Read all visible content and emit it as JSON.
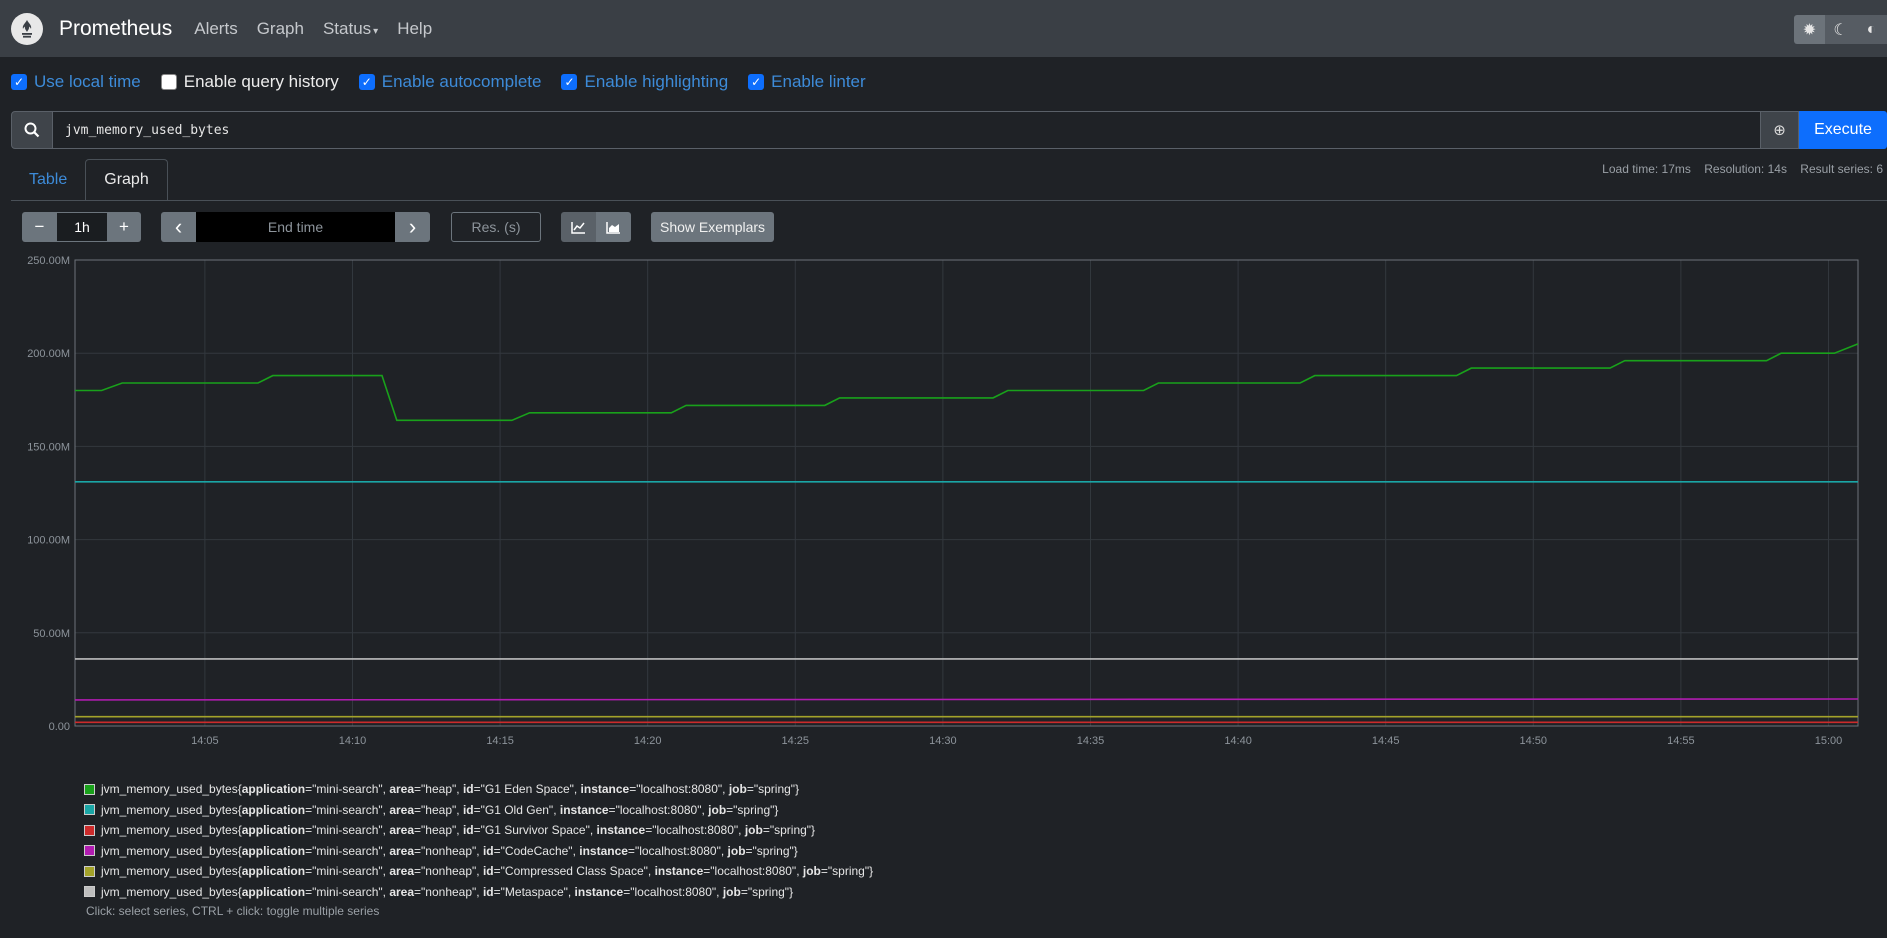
{
  "navbar": {
    "brand": "Prometheus",
    "links": [
      "Alerts",
      "Graph",
      "Status",
      "Help"
    ],
    "status_caret": "▾",
    "theme_buttons": [
      {
        "icon": "sun-icon",
        "glyph": "✹"
      },
      {
        "icon": "moon-icon",
        "glyph": "☾"
      },
      {
        "icon": "half-circle-icon",
        "glyph": "◐"
      }
    ]
  },
  "options": [
    {
      "label": "Use local time",
      "checked": true
    },
    {
      "label": "Enable query history",
      "checked": false
    },
    {
      "label": "Enable autocomplete",
      "checked": true
    },
    {
      "label": "Enable highlighting",
      "checked": true
    },
    {
      "label": "Enable linter",
      "checked": true
    }
  ],
  "query": {
    "expression": "jvm_memory_used_bytes",
    "execute_label": "Execute",
    "globe_glyph": "⊕"
  },
  "tabs": [
    "Table",
    "Graph"
  ],
  "stats": {
    "load_time": "Load time: 17ms",
    "resolution": "Resolution: 14s",
    "result_series": "Result series: 6"
  },
  "controls": {
    "minus": "−",
    "range": "1h",
    "plus": "+",
    "prev": "‹",
    "end_time_placeholder": "End time",
    "next": "›",
    "res_placeholder": "Res. (s)",
    "show_exemplars": "Show Exemplars"
  },
  "chart_data": {
    "type": "line",
    "y_ticks": [
      "0.00",
      "50.00M",
      "100.00M",
      "150.00M",
      "200.00M",
      "250.00M"
    ],
    "x_ticks": [
      "14:05",
      "14:10",
      "14:15",
      "14:20",
      "14:25",
      "14:30",
      "14:35",
      "14:40",
      "14:45",
      "14:50",
      "14:55",
      "15:00"
    ],
    "x_range_min": [
      60.6,
      121.0
    ],
    "ylim": [
      0,
      250
    ],
    "y_unit": "M",
    "grid": true,
    "series": [
      {
        "color": "#19a11b",
        "points": [
          [
            60.6,
            180
          ],
          [
            61.5,
            180
          ],
          [
            62.2,
            184
          ],
          [
            66.8,
            184
          ],
          [
            67.3,
            188
          ],
          [
            71.0,
            188
          ],
          [
            71.5,
            164
          ],
          [
            75.4,
            164
          ],
          [
            76.0,
            168
          ],
          [
            80.8,
            168
          ],
          [
            81.3,
            172
          ],
          [
            86.0,
            172
          ],
          [
            86.5,
            176
          ],
          [
            91.7,
            176
          ],
          [
            92.2,
            180
          ],
          [
            96.8,
            180
          ],
          [
            97.3,
            184
          ],
          [
            102.1,
            184
          ],
          [
            102.6,
            188
          ],
          [
            107.4,
            188
          ],
          [
            107.9,
            192
          ],
          [
            112.6,
            192
          ],
          [
            113.1,
            196
          ],
          [
            117.9,
            196
          ],
          [
            118.4,
            200
          ],
          [
            120.2,
            200
          ],
          [
            121.0,
            205
          ]
        ]
      },
      {
        "color": "#1aa6a6",
        "points": [
          [
            60.6,
            131
          ],
          [
            121.0,
            131
          ]
        ]
      },
      {
        "color": "#cc2b2b",
        "points": [
          [
            60.6,
            2
          ],
          [
            121.0,
            2
          ]
        ]
      },
      {
        "color": "#b11cb1",
        "points": [
          [
            60.6,
            14
          ],
          [
            121.0,
            14.5
          ]
        ]
      },
      {
        "color": "#a3a32a",
        "points": [
          [
            60.6,
            5
          ],
          [
            121.0,
            5
          ]
        ]
      },
      {
        "color": "#bdbdbd",
        "points": [
          [
            60.6,
            36
          ],
          [
            121.0,
            36
          ]
        ]
      }
    ]
  },
  "legend": {
    "metric": "jvm_memory_used_bytes",
    "items": [
      {
        "color": "#19a11b",
        "area": "\"heap\"",
        "id": "\"G1 Eden Space\""
      },
      {
        "color": "#1aa6a6",
        "area": "\"heap\"",
        "id": "\"G1 Old Gen\""
      },
      {
        "color": "#cc2b2b",
        "area": "\"heap\"",
        "id": "\"G1 Survivor Space\""
      },
      {
        "color": "#b11cb1",
        "area": "\"nonheap\"",
        "id": "\"CodeCache\""
      },
      {
        "color": "#a3a32a",
        "area": "\"nonheap\"",
        "id": "\"Compressed Class Space\""
      },
      {
        "color": "#bdbdbd",
        "area": "\"nonheap\"",
        "id": "\"Metaspace\""
      }
    ],
    "application": "\"mini-search\"",
    "instance": "\"localhost:8080\"",
    "job": "\"spring\"",
    "hint": "Click: select series, CTRL + click: toggle multiple series"
  }
}
